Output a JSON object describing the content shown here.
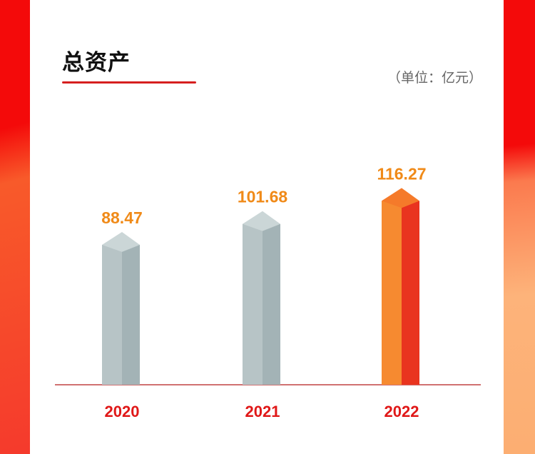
{
  "colors": {
    "bar_front": "#b7c4c6",
    "bar_side": "#a3b3b6",
    "bar_top": "#cbd6d7",
    "highlight_front": "#f68a30",
    "highlight_side": "#e9341f",
    "highlight_top": "#f57a2a",
    "value_label": "#f08a18",
    "tick_label": "#e01818",
    "baseline": "#b51c1c"
  },
  "chart_data": {
    "type": "bar",
    "title": "总资产",
    "unit": "（单位：亿元）",
    "categories": [
      "2020",
      "2021",
      "2022"
    ],
    "values": [
      88.47,
      101.68,
      116.27
    ],
    "highlight_index": 2,
    "legend": "none",
    "grid": false
  }
}
